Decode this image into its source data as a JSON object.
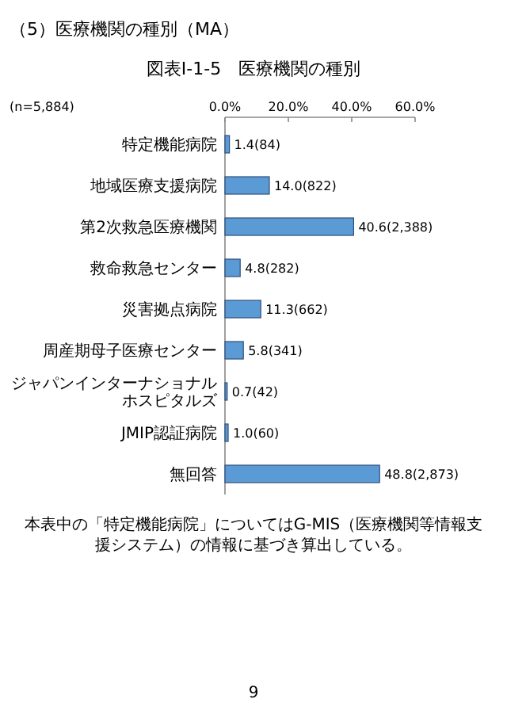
{
  "chart_data": {
    "type": "bar",
    "orientation": "horizontal",
    "title": "図表Ⅰ-1-5　医療機関の種別",
    "categories": [
      "特定機能病院",
      "地域医療支援病院",
      "第2次救急医療機関",
      "救命救急センター",
      "災害拠点病院",
      "周産期母子医療センター",
      "ジャパンインターナショナルホスピタルズ",
      "JMIP認証病院",
      "無回答"
    ],
    "values": [
      1.4,
      14.0,
      40.6,
      4.8,
      11.3,
      5.8,
      0.7,
      1.0,
      48.8
    ],
    "value_labels": [
      "1.4(84)",
      "14.0(822)",
      "40.6(2,388)",
      "4.8(282)",
      "11.3(662)",
      "5.8(341)",
      "0.7(42)",
      "1.0(60)",
      "48.8(2,873)"
    ],
    "color": "#5b9bd5",
    "xlim": [
      0,
      60
    ],
    "xticks": [
      {
        "value": 0,
        "label": "0.0%"
      },
      {
        "value": 20,
        "label": "20.0%"
      },
      {
        "value": 40,
        "label": "40.0%"
      },
      {
        "value": 60,
        "label": "60.0%"
      }
    ],
    "grid": false,
    "annotations": [
      "（5）医療機関の種別（MA）",
      "(n=5,884)",
      "本表中の「特定機能病院」についてはG-MIS（医療機関等情報支援システム）の情報に基づき算出している。",
      "9"
    ]
  }
}
